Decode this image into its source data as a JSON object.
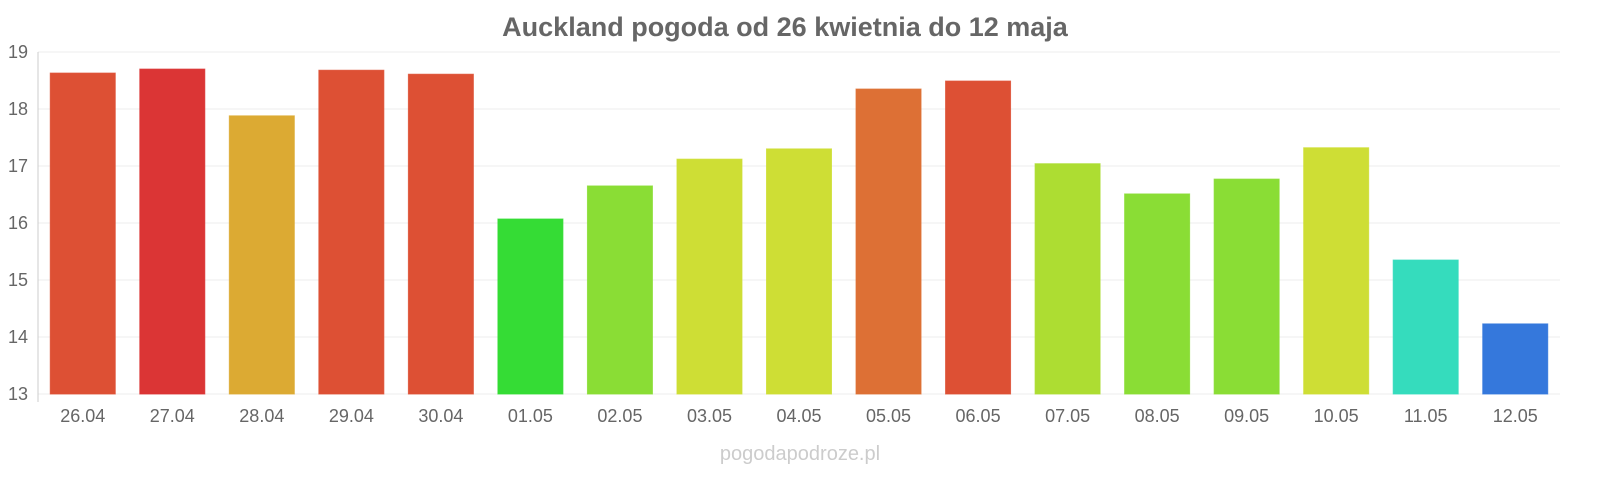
{
  "chart_data": {
    "type": "bar",
    "title": "Auckland pogoda od 26 kwietnia do 12 maja",
    "xlabel": "",
    "ylabel": "",
    "ylim": [
      13,
      19
    ],
    "yticks": [
      "13",
      "14",
      "15",
      "16",
      "17",
      "18",
      "19"
    ],
    "grid": true,
    "categories": [
      "26.04",
      "27.04",
      "28.04",
      "29.04",
      "30.04",
      "01.05",
      "02.05",
      "03.05",
      "04.05",
      "05.05",
      "06.05",
      "07.05",
      "08.05",
      "09.05",
      "10.05",
      "11.05",
      "12.05"
    ],
    "values": [
      18.63,
      18.7,
      17.88,
      18.68,
      18.61,
      16.07,
      16.65,
      17.12,
      17.3,
      18.35,
      18.49,
      17.04,
      16.51,
      16.77,
      17.32,
      15.35,
      14.23
    ],
    "colors": [
      "#dd5034",
      "#db3535",
      "#dcaa33",
      "#dd5034",
      "#dd5034",
      "#35dc35",
      "#8add35",
      "#cede35",
      "#cede35",
      "#dd7035",
      "#dd5034",
      "#addd32",
      "#8add35",
      "#8add35",
      "#cede35",
      "#35dcbd",
      "#3578dc"
    ]
  },
  "watermark": "pogodapodroze.pl"
}
